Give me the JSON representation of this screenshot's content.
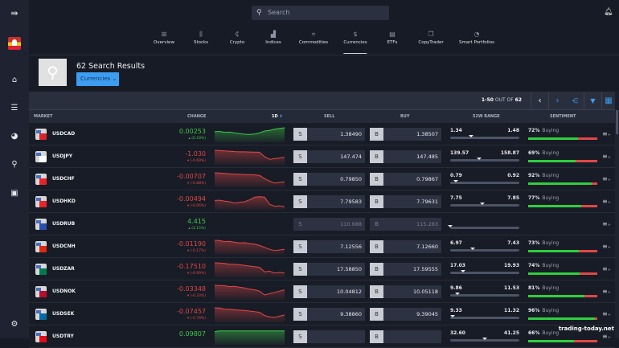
{
  "sidebar": {
    "items": [
      {
        "icon": "collapse-icon"
      },
      {
        "icon": "avatar"
      },
      {
        "icon": "home-icon"
      },
      {
        "icon": "watchlist-icon"
      },
      {
        "icon": "portfolio-icon"
      },
      {
        "icon": "search-icon"
      },
      {
        "icon": "wallet-icon"
      },
      {
        "icon": "settings-icon"
      }
    ]
  },
  "search": {
    "placeholder": "Search"
  },
  "tabs": [
    {
      "label": "Overview",
      "icon": "grid-icon"
    },
    {
      "label": "Stocks",
      "icon": "candles-icon"
    },
    {
      "label": "Crypto",
      "icon": "crypto-icon"
    },
    {
      "label": "Indices",
      "icon": "chart-icon"
    },
    {
      "label": "Commodities",
      "icon": "tag-icon"
    },
    {
      "label": "Currencies",
      "icon": "dollar-icon",
      "active": true
    },
    {
      "label": "ETFs",
      "icon": "etf-icon"
    },
    {
      "label": "CopyTrader",
      "icon": "copy-icon"
    },
    {
      "label": "Smart Portfolios",
      "icon": "pie-icon"
    }
  ],
  "header": {
    "results": "62 Search Results",
    "filter": "Currencies"
  },
  "toolbar": {
    "range": "1-50",
    "out_of": "OUT OF",
    "total": "62"
  },
  "columns": {
    "market": "MARKET",
    "change": "CHANGE",
    "period": "1D",
    "sell": "SELL",
    "buy": "BUY",
    "range": "52W RANGE",
    "sentiment": "SENTIMENT"
  },
  "colors": {
    "up": "#3ec84a",
    "down": "#e04848",
    "accent": "#3d9df0"
  },
  "rows": [
    {
      "name": "USDCAD",
      "change": "0.00253",
      "pct": "(0.18%)",
      "dir": "up",
      "sell": "1.38490",
      "buy": "1.38507",
      "low": "1.34",
      "high": "1.48",
      "pos": 0.3,
      "sentiment": "72%",
      "sent_label": "Buying",
      "sent_val": 72,
      "spark": [
        0.7,
        0.72,
        0.65,
        0.66,
        0.6,
        0.55,
        0.5,
        0.48,
        0.52,
        0.6,
        0.75,
        0.8,
        0.9,
        0.95,
        1
      ],
      "flag": "#d8232a",
      "disabled": false
    },
    {
      "name": "USDJPY",
      "change": "-1.030",
      "pct": "(-0.69%)",
      "dir": "dn",
      "sell": "147.474",
      "buy": "147.485",
      "low": "139.57",
      "high": "158.87",
      "pos": 0.42,
      "sentiment": "69%",
      "sent_label": "Buying",
      "sent_val": 69,
      "spark": [
        1,
        0.98,
        0.95,
        0.93,
        0.9,
        0.88,
        0.88,
        0.87,
        0.86,
        0.85,
        0.5,
        0.3,
        0.35,
        0.4,
        0.45
      ],
      "flag": "#fff",
      "disabled": false
    },
    {
      "name": "USDCHF",
      "change": "-0.00707",
      "pct": "(-0.88%)",
      "dir": "dn",
      "sell": "0.79850",
      "buy": "0.79867",
      "low": "0.79",
      "high": "0.92",
      "pos": 0.08,
      "sentiment": "92%",
      "sent_label": "Buying",
      "sent_val": 92,
      "spark": [
        1,
        0.98,
        0.95,
        0.92,
        0.9,
        0.88,
        0.87,
        0.86,
        0.84,
        0.8,
        0.55,
        0.35,
        0.2,
        0.25,
        0.3
      ],
      "flag": "#e8232a",
      "disabled": false
    },
    {
      "name": "USDHKD",
      "change": "-0.00494",
      "pct": "(-0.06%)",
      "dir": "dn",
      "sell": "7.79583",
      "buy": "7.79631",
      "low": "7.75",
      "high": "7.85",
      "pos": 0.46,
      "sentiment": "77%",
      "sent_label": "Buying",
      "sent_val": 77,
      "spark": [
        0.6,
        0.62,
        0.55,
        0.5,
        0.4,
        0.45,
        0.5,
        0.65,
        0.85,
        0.9,
        0.85,
        0.3,
        0.15,
        0.18,
        0.1
      ],
      "flag": "#e8232a",
      "disabled": false
    },
    {
      "name": "USDRUB",
      "change": "4.415",
      "pct": "(4.15%)",
      "dir": "up",
      "sell": "110.688",
      "buy": "115.283",
      "low": "",
      "high": "",
      "pos": 0.0,
      "sentiment": "",
      "sent_label": "",
      "sent_val": null,
      "spark": [],
      "flag": "#2b4fb0",
      "disabled": true
    },
    {
      "name": "USDCNH",
      "change": "-0.01190",
      "pct": "(-0.17%)",
      "dir": "dn",
      "sell": "7.12556",
      "buy": "7.12660",
      "low": "6.97",
      "high": "7.43",
      "pos": 0.33,
      "sentiment": "73%",
      "sent_label": "Buying",
      "sent_val": 73,
      "spark": [
        1,
        0.98,
        0.9,
        0.92,
        0.85,
        0.8,
        0.82,
        0.75,
        0.7,
        0.6,
        0.45,
        0.3,
        0.2,
        0.25,
        0.3
      ],
      "flag": "#de2910",
      "disabled": false
    },
    {
      "name": "USDZAR",
      "change": "-0.17510",
      "pct": "(-0.99%)",
      "dir": "dn",
      "sell": "17.58850",
      "buy": "17.59555",
      "low": "17.03",
      "high": "19.93",
      "pos": 0.19,
      "sentiment": "74%",
      "sent_label": "Buying",
      "sent_val": 74,
      "spark": [
        1,
        0.98,
        0.95,
        0.9,
        0.88,
        0.85,
        0.8,
        0.75,
        0.7,
        0.65,
        0.3,
        0.35,
        0.2,
        0.25,
        0.22
      ],
      "flag": "#007a4d",
      "disabled": false
    },
    {
      "name": "USDNOK",
      "change": "-0.03348",
      "pct": "(-0.33%)",
      "dir": "dn",
      "sell": "10.04812",
      "buy": "10.05118",
      "low": "9.86",
      "high": "11.53",
      "pos": 0.11,
      "sentiment": "81%",
      "sent_label": "Buying",
      "sent_val": 81,
      "spark": [
        1,
        0.98,
        0.97,
        0.9,
        0.92,
        0.85,
        0.8,
        0.7,
        0.65,
        0.55,
        0.25,
        0.35,
        0.45,
        0.55,
        0.65
      ],
      "flag": "#ba0c2f",
      "disabled": false
    },
    {
      "name": "USDSEK",
      "change": "-0.07457",
      "pct": "(-0.79%)",
      "dir": "dn",
      "sell": "9.38860",
      "buy": "9.39045",
      "low": "9.33",
      "high": "11.32",
      "pos": 0.03,
      "sentiment": "96%",
      "sent_label": "Buying",
      "sent_val": 96,
      "spark": [
        1,
        0.98,
        0.9,
        0.88,
        0.85,
        0.82,
        0.8,
        0.75,
        0.7,
        0.65,
        0.4,
        0.3,
        0.25,
        0.35,
        0.45
      ],
      "flag": "#006aa7",
      "disabled": false
    },
    {
      "name": "USDTRY",
      "change": "0.09807",
      "pct": "",
      "dir": "up",
      "sell": "",
      "buy": "",
      "low": "32.60",
      "high": "41.25",
      "pos": 0.5,
      "sentiment": "66%",
      "sent_label": "Buying",
      "sent_val": 66,
      "spark": [
        0.9,
        0.95,
        0.95,
        0.95,
        0.95,
        0.95,
        0.95,
        0.95,
        0.95,
        0.95,
        0.95,
        0.95,
        0.95,
        0.95,
        0.95
      ],
      "flag": "#e30a17",
      "disabled": false
    }
  ],
  "watermark": "trading-today.net"
}
